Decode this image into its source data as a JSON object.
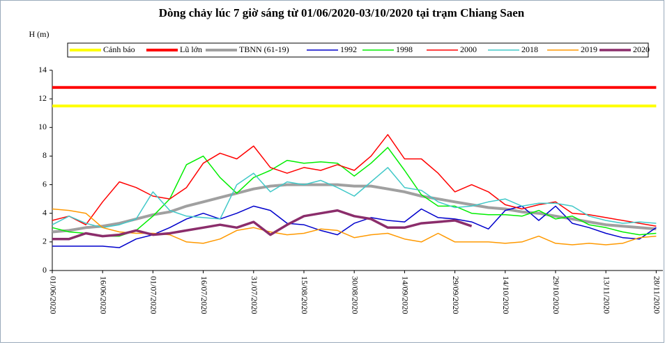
{
  "chart_data": {
    "type": "line",
    "title": "Dòng chảy lúc 7 giờ sáng từ 01/06/2020-03/10/2020 tại trạm Chiang Saen",
    "y_label": "H (m)",
    "x": [
      "01/06/2020",
      "06/06/2020",
      "11/06/2020",
      "16/06/2020",
      "21/06/2020",
      "26/06/2020",
      "01/07/2020",
      "06/07/2020",
      "11/07/2020",
      "16/07/2020",
      "21/07/2020",
      "26/07/2020",
      "31/07/2020",
      "05/08/2020",
      "10/08/2020",
      "15/08/2020",
      "20/08/2020",
      "25/08/2020",
      "30/08/2020",
      "04/09/2020",
      "09/09/2020",
      "14/09/2020",
      "19/09/2020",
      "24/09/2020",
      "29/09/2020",
      "04/10/2020",
      "09/10/2020",
      "14/10/2020",
      "19/10/2020",
      "24/10/2020",
      "29/10/2020",
      "03/11/2020",
      "08/11/2020",
      "13/11/2020",
      "18/11/2020",
      "23/11/2020",
      "28/11/2020"
    ],
    "xlim": [
      "01/06/2020",
      "30/11/2020"
    ],
    "xticks": [
      "01/06/2020",
      "16/06/2020",
      "01/07/2020",
      "16/07/2020",
      "31/07/2020",
      "15/08/2020",
      "30/08/2020",
      "14/09/2020",
      "29/09/2020",
      "14/10/2020",
      "29/10/2020",
      "13/11/2020",
      "28/11/2020"
    ],
    "ylim": [
      0,
      14
    ],
    "yticks": [
      0,
      2,
      4,
      6,
      8,
      10,
      12,
      14
    ],
    "series": [
      {
        "name": "Cảnh báo",
        "color": "#ffff00",
        "width": 4,
        "values": [
          11.5,
          11.5,
          11.5,
          11.5,
          11.5,
          11.5,
          11.5,
          11.5,
          11.5,
          11.5,
          11.5,
          11.5,
          11.5,
          11.5,
          11.5,
          11.5,
          11.5,
          11.5,
          11.5,
          11.5,
          11.5,
          11.5,
          11.5,
          11.5,
          11.5,
          11.5,
          11.5,
          11.5,
          11.5,
          11.5,
          11.5,
          11.5,
          11.5,
          11.5,
          11.5,
          11.5,
          11.5
        ]
      },
      {
        "name": "Lũ lớn",
        "color": "#ff0000",
        "width": 4,
        "values": [
          12.8,
          12.8,
          12.8,
          12.8,
          12.8,
          12.8,
          12.8,
          12.8,
          12.8,
          12.8,
          12.8,
          12.8,
          12.8,
          12.8,
          12.8,
          12.8,
          12.8,
          12.8,
          12.8,
          12.8,
          12.8,
          12.8,
          12.8,
          12.8,
          12.8,
          12.8,
          12.8,
          12.8,
          12.8,
          12.8,
          12.8,
          12.8,
          12.8,
          12.8,
          12.8,
          12.8,
          12.8
        ]
      },
      {
        "name": "TBNN (61-19)",
        "color": "#a0a0a0",
        "width": 4,
        "values": [
          2.7,
          2.8,
          3.0,
          3.1,
          3.3,
          3.6,
          3.9,
          4.1,
          4.5,
          4.8,
          5.1,
          5.4,
          5.7,
          5.9,
          6.0,
          6.0,
          6.0,
          6.0,
          5.9,
          5.9,
          5.7,
          5.5,
          5.2,
          5.0,
          4.8,
          4.6,
          4.4,
          4.3,
          4.1,
          4.0,
          3.8,
          3.6,
          3.4,
          3.2,
          3.1,
          3.0,
          2.9
        ]
      },
      {
        "name": "1992",
        "color": "#0000cc",
        "width": 1.5,
        "values": [
          1.7,
          1.7,
          1.7,
          1.7,
          1.6,
          2.2,
          2.5,
          3.0,
          3.6,
          4.0,
          3.6,
          4.0,
          4.5,
          4.2,
          3.3,
          3.2,
          2.8,
          2.5,
          3.3,
          3.7,
          3.5,
          3.4,
          4.3,
          3.7,
          3.6,
          3.4,
          2.9,
          4.2,
          4.5,
          3.5,
          4.5,
          3.3,
          3.0,
          2.6,
          2.3,
          2.2,
          3.0
        ]
      },
      {
        "name": "1998",
        "color": "#00ee00",
        "width": 1.5,
        "values": [
          3.0,
          2.7,
          2.6,
          2.4,
          2.4,
          2.8,
          3.8,
          5.0,
          7.4,
          8.0,
          6.5,
          5.4,
          6.5,
          7.0,
          7.7,
          7.5,
          7.6,
          7.5,
          6.6,
          7.5,
          8.6,
          7.0,
          5.3,
          4.5,
          4.5,
          4.0,
          3.9,
          3.9,
          3.8,
          4.2,
          3.6,
          3.8,
          3.2,
          3.0,
          2.7,
          2.5,
          2.6
        ]
      },
      {
        "name": "2000",
        "color": "#ff0000",
        "width": 1.5,
        "values": [
          3.5,
          3.8,
          3.2,
          4.8,
          6.2,
          5.8,
          5.2,
          5.0,
          5.8,
          7.5,
          8.2,
          7.8,
          8.7,
          7.2,
          6.8,
          7.2,
          7.0,
          7.4,
          7.0,
          8.0,
          9.5,
          7.8,
          7.8,
          6.8,
          5.5,
          6.0,
          5.5,
          4.6,
          4.3,
          4.6,
          4.8,
          4.0,
          3.9,
          3.7,
          3.5,
          3.3,
          3.1
        ]
      },
      {
        "name": "2018",
        "color": "#40c8c8",
        "width": 1.5,
        "values": [
          3.2,
          3.8,
          3.3,
          3.0,
          3.2,
          3.6,
          5.5,
          4.2,
          3.8,
          3.7,
          3.6,
          6.0,
          6.8,
          5.5,
          6.2,
          6.0,
          6.3,
          5.8,
          5.2,
          6.2,
          7.2,
          5.8,
          5.6,
          4.8,
          4.4,
          4.5,
          4.8,
          5.0,
          4.5,
          4.7,
          4.7,
          4.5,
          3.8,
          3.5,
          3.3,
          3.4,
          3.3
        ]
      },
      {
        "name": "2019",
        "color": "#ff9900",
        "width": 1.5,
        "values": [
          4.3,
          4.2,
          4.0,
          3.0,
          2.7,
          2.6,
          2.6,
          2.5,
          2.0,
          1.9,
          2.2,
          2.8,
          3.0,
          2.7,
          2.5,
          2.6,
          2.9,
          2.8,
          2.3,
          2.5,
          2.6,
          2.2,
          2.0,
          2.6,
          2.0,
          2.0,
          2.0,
          1.9,
          2.0,
          2.4,
          1.9,
          1.8,
          1.9,
          1.8,
          1.9,
          2.3,
          2.4
        ]
      },
      {
        "name": "2020",
        "color": "#8b2d6b",
        "width": 3.5,
        "values": [
          2.2,
          2.2,
          2.6,
          2.4,
          2.5,
          2.8,
          2.5,
          2.6,
          2.8,
          3.0,
          3.2,
          3.0,
          3.4,
          2.5,
          3.2,
          3.8,
          4.0,
          4.2,
          3.8,
          3.6,
          3.0,
          3.0,
          3.3,
          3.4,
          3.5,
          3.1,
          null,
          null,
          null,
          null,
          null,
          null,
          null,
          null,
          null,
          null,
          null
        ]
      }
    ]
  }
}
